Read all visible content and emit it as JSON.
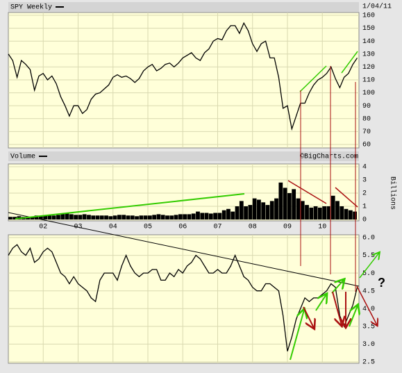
{
  "chart_data": [
    {
      "type": "line",
      "date": "1/04/11",
      "x": [
        2001,
        2001.125,
        2001.25,
        2001.375,
        2001.5,
        2001.625,
        2001.75,
        2001.875,
        2002,
        2002.125,
        2002.25,
        2002.375,
        2002.5,
        2002.625,
        2002.75,
        2002.875,
        2003,
        2003.125,
        2003.25,
        2003.375,
        2003.5,
        2003.625,
        2003.75,
        2003.875,
        2004,
        2004.125,
        2004.25,
        2004.375,
        2004.5,
        2004.625,
        2004.75,
        2004.875,
        2005,
        2005.125,
        2005.25,
        2005.375,
        2005.5,
        2005.625,
        2005.75,
        2005.875,
        2006,
        2006.125,
        2006.25,
        2006.375,
        2006.5,
        2006.625,
        2006.75,
        2006.875,
        2007,
        2007.125,
        2007.25,
        2007.375,
        2007.5,
        2007.625,
        2007.75,
        2007.875,
        2008,
        2008.125,
        2008.25,
        2008.375,
        2008.5,
        2008.625,
        2008.75,
        2008.875,
        2009,
        2009.125,
        2009.25,
        2009.375,
        2009.5,
        2009.625,
        2009.75,
        2009.875,
        2010,
        2010.125,
        2010.25,
        2010.375,
        2010.5,
        2010.625,
        2010.75,
        2010.875,
        2011
      ],
      "series": [
        {
          "name": "SPY Weekly",
          "color": "#000000",
          "values": [
            130,
            125,
            112,
            125,
            122,
            118,
            102,
            113,
            115,
            110,
            113,
            107,
            97,
            90,
            82,
            90,
            90,
            84,
            87,
            95,
            99,
            100,
            103,
            106,
            112,
            114,
            112,
            113,
            111,
            108,
            111,
            117,
            120,
            122,
            117,
            119,
            122,
            123,
            120,
            123,
            127,
            129,
            131,
            127,
            125,
            131,
            134,
            140,
            142,
            141,
            148,
            152,
            152,
            146,
            154,
            148,
            138,
            132,
            138,
            140,
            127,
            127,
            112,
            88,
            90,
            72,
            82,
            92,
            92,
            100,
            106,
            110,
            112,
            115,
            120,
            111,
            104,
            112,
            115,
            122,
            127
          ]
        }
      ],
      "xlim": [
        2001,
        2011.05
      ],
      "ylim": [
        60,
        160
      ],
      "yticks": [
        60,
        70,
        80,
        90,
        100,
        110,
        120,
        130,
        140,
        150,
        160
      ],
      "grid": true
    },
    {
      "type": "bar",
      "source": "©BigCharts.com",
      "y_label": "Billions",
      "x": [
        2001,
        2001.125,
        2001.25,
        2001.375,
        2001.5,
        2001.625,
        2001.75,
        2001.875,
        2002,
        2002.125,
        2002.25,
        2002.375,
        2002.5,
        2002.625,
        2002.75,
        2002.875,
        2003,
        2003.125,
        2003.25,
        2003.375,
        2003.5,
        2003.625,
        2003.75,
        2003.875,
        2004,
        2004.125,
        2004.25,
        2004.375,
        2004.5,
        2004.625,
        2004.75,
        2004.875,
        2005,
        2005.125,
        2005.25,
        2005.375,
        2005.5,
        2005.625,
        2005.75,
        2005.875,
        2006,
        2006.125,
        2006.25,
        2006.375,
        2006.5,
        2006.625,
        2006.75,
        2006.875,
        2007,
        2007.125,
        2007.25,
        2007.375,
        2007.5,
        2007.625,
        2007.75,
        2007.875,
        2008,
        2008.125,
        2008.25,
        2008.375,
        2008.5,
        2008.625,
        2008.75,
        2008.875,
        2009,
        2009.125,
        2009.25,
        2009.375,
        2009.5,
        2009.625,
        2009.75,
        2009.875,
        2010,
        2010.125,
        2010.25,
        2010.375,
        2010.5,
        2010.625,
        2010.75,
        2010.875
      ],
      "series": [
        {
          "name": "Volume",
          "color": "#000000",
          "values": [
            0.2,
            0.2,
            0.25,
            0.2,
            0.2,
            0.2,
            0.3,
            0.25,
            0.3,
            0.3,
            0.3,
            0.35,
            0.45,
            0.45,
            0.4,
            0.35,
            0.35,
            0.4,
            0.35,
            0.3,
            0.3,
            0.3,
            0.3,
            0.25,
            0.3,
            0.35,
            0.35,
            0.3,
            0.3,
            0.25,
            0.3,
            0.3,
            0.3,
            0.35,
            0.4,
            0.35,
            0.3,
            0.3,
            0.35,
            0.4,
            0.4,
            0.4,
            0.45,
            0.6,
            0.5,
            0.5,
            0.45,
            0.5,
            0.5,
            0.7,
            0.8,
            0.6,
            1.0,
            1.4,
            1.0,
            1.1,
            1.6,
            1.5,
            1.3,
            1.1,
            1.4,
            1.6,
            2.8,
            2.4,
            2.0,
            2.3,
            1.6,
            1.4,
            1.1,
            0.9,
            1.0,
            0.9,
            1.0,
            1.0,
            1.8,
            1.4,
            1.0,
            0.8,
            0.7,
            0.6
          ]
        }
      ],
      "xlim": [
        2001,
        2011.05
      ],
      "ylim": [
        0,
        4
      ],
      "yticks": [
        0,
        1,
        2,
        3,
        4
      ],
      "grid": true,
      "xticks": [
        {
          "value": 2002,
          "label": "02"
        },
        {
          "value": 2003,
          "label": "03"
        },
        {
          "value": 2004,
          "label": "04"
        },
        {
          "value": 2005,
          "label": "05"
        },
        {
          "value": 2006,
          "label": "06"
        },
        {
          "value": 2007,
          "label": "07"
        },
        {
          "value": 2008,
          "label": "08"
        },
        {
          "value": 2009,
          "label": "09"
        },
        {
          "value": 2010,
          "label": "10"
        }
      ]
    },
    {
      "type": "line",
      "annotation": "?",
      "color": "#000000",
      "x": [
        2001,
        2001.125,
        2001.25,
        2001.375,
        2001.5,
        2001.625,
        2001.75,
        2001.875,
        2002,
        2002.125,
        2002.25,
        2002.375,
        2002.5,
        2002.625,
        2002.75,
        2002.875,
        2003,
        2003.125,
        2003.25,
        2003.375,
        2003.5,
        2003.625,
        2003.75,
        2003.875,
        2004,
        2004.125,
        2004.25,
        2004.375,
        2004.5,
        2004.625,
        2004.75,
        2004.875,
        2005,
        2005.125,
        2005.25,
        2005.375,
        2005.5,
        2005.625,
        2005.75,
        2005.875,
        2006,
        2006.125,
        2006.25,
        2006.375,
        2006.5,
        2006.625,
        2006.75,
        2006.875,
        2007,
        2007.125,
        2007.25,
        2007.375,
        2007.5,
        2007.625,
        2007.75,
        2007.875,
        2008,
        2008.125,
        2008.25,
        2008.375,
        2008.5,
        2008.625,
        2008.75,
        2008.875,
        2009,
        2009.125,
        2009.25,
        2009.375,
        2009.5,
        2009.625,
        2009.75,
        2009.875,
        2010,
        2010.125,
        2010.25,
        2010.375,
        2010.5,
        2010.625,
        2010.75,
        2010.875,
        2011
      ],
      "values": [
        5.5,
        5.7,
        5.8,
        5.6,
        5.5,
        5.7,
        5.3,
        5.4,
        5.6,
        5.7,
        5.6,
        5.3,
        5.0,
        4.9,
        4.7,
        4.9,
        4.7,
        4.6,
        4.5,
        4.3,
        4.2,
        4.8,
        5.0,
        5.0,
        5.0,
        4.8,
        5.2,
        5.5,
        5.2,
        5.0,
        4.9,
        5.0,
        5.0,
        5.1,
        5.1,
        4.8,
        4.8,
        5.0,
        4.9,
        5.1,
        5.0,
        5.2,
        5.3,
        5.5,
        5.4,
        5.2,
        5.0,
        5.0,
        5.1,
        5.0,
        5.0,
        5.2,
        5.5,
        5.2,
        4.9,
        4.8,
        4.6,
        4.5,
        4.5,
        4.7,
        4.7,
        4.6,
        4.5,
        3.8,
        2.8,
        3.2,
        3.7,
        4.0,
        4.3,
        4.2,
        4.3,
        4.3,
        4.4,
        4.5,
        4.7,
        4.6,
        3.8,
        3.5,
        3.8,
        4.1,
        4.6
      ],
      "xlim": [
        2001,
        2011.05
      ],
      "ylim": [
        2.5,
        6
      ],
      "yticks": [
        2.5,
        {
          "value": 3,
          "label": "3.0"
        },
        3.5,
        {
          "value": 4,
          "label": "4.0"
        },
        4.5,
        {
          "value": 5,
          "label": "5.0"
        },
        5.5,
        {
          "value": 6,
          "label": "6.0"
        }
      ],
      "grid": true
    }
  ]
}
